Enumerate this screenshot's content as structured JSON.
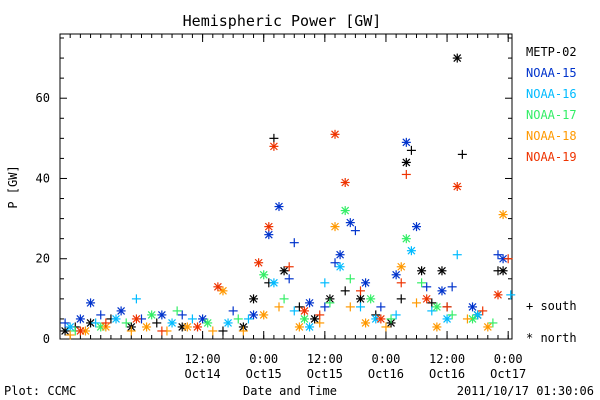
{
  "chart_data": {
    "type": "scatter",
    "title": "Hemispheric Power [GW]",
    "xlabel": "Date and Time",
    "ylabel": "P [GW]",
    "xlim": [
      "2011-10-13T08:00",
      "2011-10-17T00:45"
    ],
    "ylim": [
      0,
      76
    ],
    "y_ticks": [
      0,
      20,
      40,
      60
    ],
    "x_ticks": [
      {
        "t": "2011-10-14T12:00",
        "line1": "12:00",
        "line2": "Oct14"
      },
      {
        "t": "2011-10-15T00:00",
        "line1": "0:00",
        "line2": "Oct15"
      },
      {
        "t": "2011-10-15T12:00",
        "line1": "12:00",
        "line2": "Oct15"
      },
      {
        "t": "2011-10-16T00:00",
        "line1": "0:00",
        "line2": "Oct16"
      },
      {
        "t": "2011-10-16T12:00",
        "line1": "12:00",
        "line2": "Oct16"
      },
      {
        "t": "2011-10-17T00:00",
        "line1": "0:00",
        "line2": "Oct17"
      }
    ],
    "markers": {
      "plus": "south",
      "star": "north"
    },
    "grid": false,
    "legend": "right",
    "series": [
      {
        "name": "METP-02",
        "color": "#000000",
        "points": [
          {
            "t": "2011-10-13T09:00",
            "y": 2,
            "m": "star"
          },
          {
            "t": "2011-10-13T11:00",
            "y": 3,
            "m": "plus"
          },
          {
            "t": "2011-10-13T14:00",
            "y": 4,
            "m": "star"
          },
          {
            "t": "2011-10-13T18:00",
            "y": 5,
            "m": "plus"
          },
          {
            "t": "2011-10-13T22:00",
            "y": 3,
            "m": "star"
          },
          {
            "t": "2011-10-14T03:00",
            "y": 4,
            "m": "plus"
          },
          {
            "t": "2011-10-14T08:00",
            "y": 3,
            "m": "star"
          },
          {
            "t": "2011-10-14T16:00",
            "y": 2,
            "m": "plus"
          },
          {
            "t": "2011-10-14T20:00",
            "y": 3,
            "m": "star"
          },
          {
            "t": "2011-10-14T22:00",
            "y": 10,
            "m": "star"
          },
          {
            "t": "2011-10-15T01:00",
            "y": 14,
            "m": "plus"
          },
          {
            "t": "2011-10-15T02:00",
            "y": 50,
            "m": "plus"
          },
          {
            "t": "2011-10-15T04:00",
            "y": 17,
            "m": "star"
          },
          {
            "t": "2011-10-15T07:00",
            "y": 8,
            "m": "plus"
          },
          {
            "t": "2011-10-15T10:00",
            "y": 5,
            "m": "star"
          },
          {
            "t": "2011-10-15T13:00",
            "y": 10,
            "m": "star"
          },
          {
            "t": "2011-10-15T16:00",
            "y": 12,
            "m": "plus"
          },
          {
            "t": "2011-10-15T19:00",
            "y": 10,
            "m": "star"
          },
          {
            "t": "2011-10-15T22:00",
            "y": 6,
            "m": "plus"
          },
          {
            "t": "2011-10-16T01:00",
            "y": 4,
            "m": "star"
          },
          {
            "t": "2011-10-16T03:00",
            "y": 10,
            "m": "plus"
          },
          {
            "t": "2011-10-16T04:00",
            "y": 44,
            "m": "star"
          },
          {
            "t": "2011-10-16T05:00",
            "y": 47,
            "m": "plus"
          },
          {
            "t": "2011-10-16T07:00",
            "y": 17,
            "m": "star"
          },
          {
            "t": "2011-10-16T09:00",
            "y": 9,
            "m": "plus"
          },
          {
            "t": "2011-10-16T11:00",
            "y": 17,
            "m": "star"
          },
          {
            "t": "2011-10-16T12:00",
            "y": 8,
            "m": "plus"
          },
          {
            "t": "2011-10-16T14:00",
            "y": 70,
            "m": "star"
          },
          {
            "t": "2011-10-16T15:00",
            "y": 46,
            "m": "plus"
          },
          {
            "t": "2011-10-16T18:00",
            "y": 6,
            "m": "star"
          },
          {
            "t": "2011-10-16T22:00",
            "y": 17,
            "m": "plus"
          },
          {
            "t": "2011-10-16T23:00",
            "y": 17,
            "m": "star"
          }
        ]
      },
      {
        "name": "NOAA-15",
        "color": "#0033cc",
        "points": [
          {
            "t": "2011-10-13T09:00",
            "y": 4,
            "m": "plus"
          },
          {
            "t": "2011-10-13T12:00",
            "y": 5,
            "m": "star"
          },
          {
            "t": "2011-10-13T14:00",
            "y": 9,
            "m": "star"
          },
          {
            "t": "2011-10-13T16:00",
            "y": 6,
            "m": "plus"
          },
          {
            "t": "2011-10-13T20:00",
            "y": 7,
            "m": "star"
          },
          {
            "t": "2011-10-14T00:00",
            "y": 5,
            "m": "plus"
          },
          {
            "t": "2011-10-14T04:00",
            "y": 6,
            "m": "star"
          },
          {
            "t": "2011-10-14T08:00",
            "y": 6,
            "m": "plus"
          },
          {
            "t": "2011-10-14T12:00",
            "y": 5,
            "m": "star"
          },
          {
            "t": "2011-10-14T18:00",
            "y": 7,
            "m": "plus"
          },
          {
            "t": "2011-10-14T22:00",
            "y": 6,
            "m": "star"
          },
          {
            "t": "2011-10-15T01:00",
            "y": 26,
            "m": "star"
          },
          {
            "t": "2011-10-15T03:00",
            "y": 33,
            "m": "star"
          },
          {
            "t": "2011-10-15T05:00",
            "y": 15,
            "m": "plus"
          },
          {
            "t": "2011-10-15T06:00",
            "y": 24,
            "m": "plus"
          },
          {
            "t": "2011-10-15T09:00",
            "y": 9,
            "m": "star"
          },
          {
            "t": "2011-10-15T12:00",
            "y": 8,
            "m": "plus"
          },
          {
            "t": "2011-10-15T14:00",
            "y": 19,
            "m": "plus"
          },
          {
            "t": "2011-10-15T15:00",
            "y": 21,
            "m": "star"
          },
          {
            "t": "2011-10-15T17:00",
            "y": 29,
            "m": "star"
          },
          {
            "t": "2011-10-15T18:00",
            "y": 27,
            "m": "plus"
          },
          {
            "t": "2011-10-15T20:00",
            "y": 14,
            "m": "star"
          },
          {
            "t": "2011-10-15T23:00",
            "y": 8,
            "m": "plus"
          },
          {
            "t": "2011-10-16T02:00",
            "y": 16,
            "m": "star"
          },
          {
            "t": "2011-10-16T04:00",
            "y": 49,
            "m": "star"
          },
          {
            "t": "2011-10-16T06:00",
            "y": 28,
            "m": "star"
          },
          {
            "t": "2011-10-16T08:00",
            "y": 13,
            "m": "plus"
          },
          {
            "t": "2011-10-16T11:00",
            "y": 12,
            "m": "star"
          },
          {
            "t": "2011-10-16T13:00",
            "y": 13,
            "m": "plus"
          },
          {
            "t": "2011-10-16T17:00",
            "y": 8,
            "m": "star"
          },
          {
            "t": "2011-10-16T22:00",
            "y": 21,
            "m": "plus"
          },
          {
            "t": "2011-10-16T23:00",
            "y": 20,
            "m": "star"
          }
        ]
      },
      {
        "name": "NOAA-16",
        "color": "#00bbff",
        "points": [
          {
            "t": "2011-10-13T10:00",
            "y": 3,
            "m": "star"
          },
          {
            "t": "2011-10-13T15:00",
            "y": 4,
            "m": "plus"
          },
          {
            "t": "2011-10-13T19:00",
            "y": 5,
            "m": "star"
          },
          {
            "t": "2011-10-13T23:00",
            "y": 10,
            "m": "plus"
          },
          {
            "t": "2011-10-14T06:00",
            "y": 4,
            "m": "star"
          },
          {
            "t": "2011-10-14T10:00",
            "y": 5,
            "m": "plus"
          },
          {
            "t": "2011-10-14T17:00",
            "y": 4,
            "m": "star"
          },
          {
            "t": "2011-10-14T21:00",
            "y": 5,
            "m": "plus"
          },
          {
            "t": "2011-10-15T02:00",
            "y": 14,
            "m": "star"
          },
          {
            "t": "2011-10-15T06:00",
            "y": 7,
            "m": "plus"
          },
          {
            "t": "2011-10-15T09:00",
            "y": 3,
            "m": "star"
          },
          {
            "t": "2011-10-15T12:00",
            "y": 14,
            "m": "plus"
          },
          {
            "t": "2011-10-15T15:00",
            "y": 18,
            "m": "star"
          },
          {
            "t": "2011-10-15T19:00",
            "y": 8,
            "m": "plus"
          },
          {
            "t": "2011-10-15T22:00",
            "y": 5,
            "m": "star"
          },
          {
            "t": "2011-10-16T02:00",
            "y": 6,
            "m": "plus"
          },
          {
            "t": "2011-10-16T05:00",
            "y": 22,
            "m": "star"
          },
          {
            "t": "2011-10-16T09:00",
            "y": 7,
            "m": "plus"
          },
          {
            "t": "2011-10-16T12:00",
            "y": 5,
            "m": "star"
          },
          {
            "t": "2011-10-16T14:00",
            "y": 21,
            "m": "plus"
          },
          {
            "t": "2011-10-16T18:00",
            "y": 6,
            "m": "star"
          },
          {
            "t": "2011-10-17T00:30",
            "y": 11,
            "m": "plus"
          }
        ]
      },
      {
        "name": "NOAA-17",
        "color": "#33ee66",
        "points": [
          {
            "t": "2011-10-13T11:00",
            "y": 2,
            "m": "plus"
          },
          {
            "t": "2011-10-13T16:00",
            "y": 3,
            "m": "star"
          },
          {
            "t": "2011-10-13T21:00",
            "y": 4,
            "m": "plus"
          },
          {
            "t": "2011-10-14T02:00",
            "y": 6,
            "m": "star"
          },
          {
            "t": "2011-10-14T07:00",
            "y": 7,
            "m": "plus"
          },
          {
            "t": "2011-10-14T13:00",
            "y": 4,
            "m": "star"
          },
          {
            "t": "2011-10-14T19:00",
            "y": 5,
            "m": "plus"
          },
          {
            "t": "2011-10-15T00:00",
            "y": 16,
            "m": "star"
          },
          {
            "t": "2011-10-15T04:00",
            "y": 10,
            "m": "plus"
          },
          {
            "t": "2011-10-15T08:00",
            "y": 5,
            "m": "star"
          },
          {
            "t": "2011-10-15T13:00",
            "y": 9,
            "m": "plus"
          },
          {
            "t": "2011-10-15T16:00",
            "y": 32,
            "m": "star"
          },
          {
            "t": "2011-10-15T17:00",
            "y": 15,
            "m": "plus"
          },
          {
            "t": "2011-10-15T21:00",
            "y": 10,
            "m": "star"
          },
          {
            "t": "2011-10-16T01:00",
            "y": 5,
            "m": "plus"
          },
          {
            "t": "2011-10-16T04:00",
            "y": 25,
            "m": "star"
          },
          {
            "t": "2011-10-16T07:00",
            "y": 14,
            "m": "plus"
          },
          {
            "t": "2011-10-16T10:00",
            "y": 8,
            "m": "star"
          },
          {
            "t": "2011-10-16T13:00",
            "y": 6,
            "m": "plus"
          },
          {
            "t": "2011-10-16T17:00",
            "y": 5,
            "m": "star"
          },
          {
            "t": "2011-10-16T21:00",
            "y": 4,
            "m": "plus"
          }
        ]
      },
      {
        "name": "NOAA-18",
        "color": "#ff9900",
        "points": [
          {
            "t": "2011-10-13T10:00",
            "y": 1,
            "m": "plus"
          },
          {
            "t": "2011-10-13T13:00",
            "y": 2,
            "m": "star"
          },
          {
            "t": "2011-10-13T17:00",
            "y": 3,
            "m": "star"
          },
          {
            "t": "2011-10-13T22:00",
            "y": 2,
            "m": "plus"
          },
          {
            "t": "2011-10-14T01:00",
            "y": 3,
            "m": "star"
          },
          {
            "t": "2011-10-14T05:00",
            "y": 2,
            "m": "plus"
          },
          {
            "t": "2011-10-14T09:00",
            "y": 3,
            "m": "star"
          },
          {
            "t": "2011-10-14T14:00",
            "y": 2,
            "m": "plus"
          },
          {
            "t": "2011-10-14T16:00",
            "y": 12,
            "m": "star"
          },
          {
            "t": "2011-10-14T20:00",
            "y": 2,
            "m": "plus"
          },
          {
            "t": "2011-10-15T00:00",
            "y": 6,
            "m": "star"
          },
          {
            "t": "2011-10-15T03:00",
            "y": 8,
            "m": "plus"
          },
          {
            "t": "2011-10-15T07:00",
            "y": 3,
            "m": "star"
          },
          {
            "t": "2011-10-15T11:00",
            "y": 4,
            "m": "plus"
          },
          {
            "t": "2011-10-15T14:00",
            "y": 28,
            "m": "star"
          },
          {
            "t": "2011-10-15T17:00",
            "y": 8,
            "m": "plus"
          },
          {
            "t": "2011-10-15T20:00",
            "y": 4,
            "m": "star"
          },
          {
            "t": "2011-10-16T00:00",
            "y": 3,
            "m": "plus"
          },
          {
            "t": "2011-10-16T03:00",
            "y": 18,
            "m": "star"
          },
          {
            "t": "2011-10-16T06:00",
            "y": 9,
            "m": "plus"
          },
          {
            "t": "2011-10-16T10:00",
            "y": 3,
            "m": "star"
          },
          {
            "t": "2011-10-16T16:00",
            "y": 5,
            "m": "plus"
          },
          {
            "t": "2011-10-16T20:00",
            "y": 3,
            "m": "star"
          },
          {
            "t": "2011-10-16T23:00",
            "y": 31,
            "m": "star"
          }
        ]
      },
      {
        "name": "NOAA-19",
        "color": "#ee3300",
        "points": [
          {
            "t": "2011-10-13T12:00",
            "y": 2,
            "m": "star"
          },
          {
            "t": "2011-10-13T17:00",
            "y": 4,
            "m": "plus"
          },
          {
            "t": "2011-10-13T23:00",
            "y": 5,
            "m": "star"
          },
          {
            "t": "2011-10-14T04:00",
            "y": 2,
            "m": "plus"
          },
          {
            "t": "2011-10-14T11:00",
            "y": 3,
            "m": "star"
          },
          {
            "t": "2011-10-14T15:00",
            "y": 13,
            "m": "star"
          },
          {
            "t": "2011-10-14T23:00",
            "y": 19,
            "m": "star"
          },
          {
            "t": "2011-10-15T01:00",
            "y": 28,
            "m": "star"
          },
          {
            "t": "2011-10-15T02:00",
            "y": 48,
            "m": "star"
          },
          {
            "t": "2011-10-15T05:00",
            "y": 18,
            "m": "plus"
          },
          {
            "t": "2011-10-15T08:00",
            "y": 7,
            "m": "star"
          },
          {
            "t": "2011-10-15T11:00",
            "y": 6,
            "m": "plus"
          },
          {
            "t": "2011-10-15T14:00",
            "y": 51,
            "m": "star"
          },
          {
            "t": "2011-10-15T16:00",
            "y": 39,
            "m": "star"
          },
          {
            "t": "2011-10-15T19:00",
            "y": 12,
            "m": "plus"
          },
          {
            "t": "2011-10-15T23:00",
            "y": 5,
            "m": "star"
          },
          {
            "t": "2011-10-16T03:00",
            "y": 14,
            "m": "plus"
          },
          {
            "t": "2011-10-16T04:00",
            "y": 41,
            "m": "plus"
          },
          {
            "t": "2011-10-16T08:00",
            "y": 10,
            "m": "star"
          },
          {
            "t": "2011-10-16T12:00",
            "y": 8,
            "m": "plus"
          },
          {
            "t": "2011-10-16T14:00",
            "y": 38,
            "m": "star"
          },
          {
            "t": "2011-10-16T19:00",
            "y": 7,
            "m": "plus"
          },
          {
            "t": "2011-10-16T22:00",
            "y": 11,
            "m": "star"
          },
          {
            "t": "2011-10-17T00:00",
            "y": 20,
            "m": "plus"
          }
        ]
      }
    ]
  },
  "legend_key": {
    "south_label": "+ south",
    "north_label": "* north"
  },
  "footer": {
    "plot_credit": "Plot: CCMC",
    "timestamp": "2011/10/17 01:30:06"
  }
}
